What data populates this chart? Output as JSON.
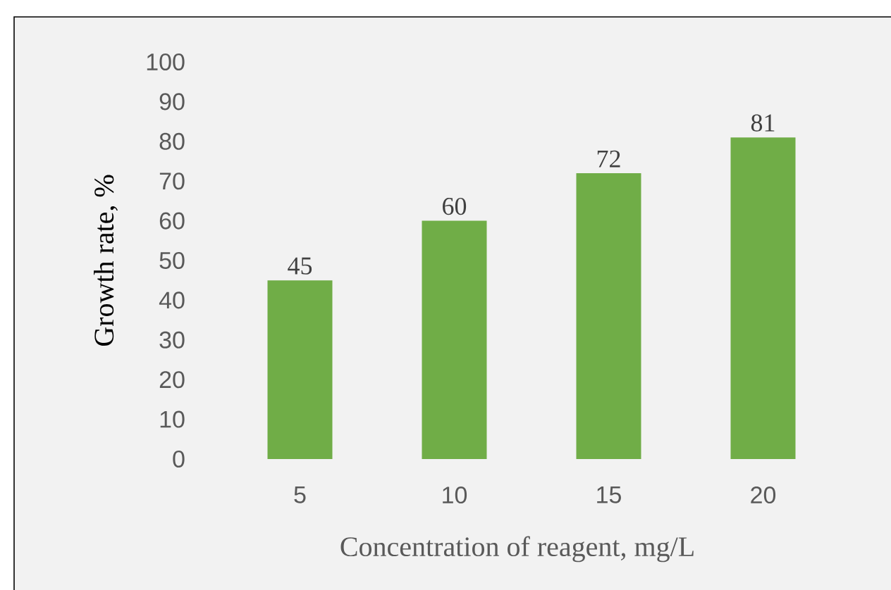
{
  "chart_data": {
    "type": "bar",
    "xlabel": "Concentration of reagent, mg/L",
    "ylabel": "Growth rate, %",
    "categories": [
      "5",
      "10",
      "15",
      "20"
    ],
    "values": [
      45,
      60,
      72,
      81
    ],
    "color": "#70ad47",
    "ylim": [
      0,
      100
    ],
    "yticks": [
      0,
      10,
      20,
      30,
      40,
      50,
      60,
      70,
      80,
      90,
      100
    ],
    "data_labels": true
  }
}
